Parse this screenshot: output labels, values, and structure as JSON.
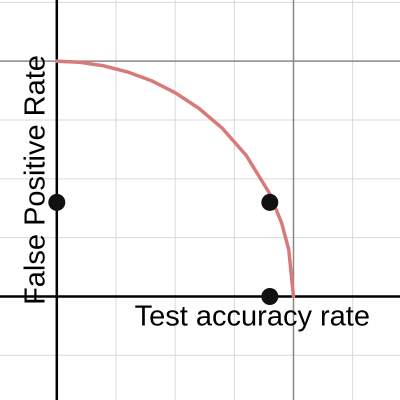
{
  "chart_data": {
    "type": "line",
    "x_label": "Test accuracy rate",
    "y_label": "False Positive Rate",
    "xlim": [
      -0.24,
      1.45
    ],
    "ylim": [
      -0.44,
      1.26
    ],
    "xticks": [
      0,
      0.25,
      0.5,
      0.75,
      1,
      1.25
    ],
    "yticks": [
      -0.25,
      0,
      0.25,
      0.5,
      0.75,
      1,
      1.25
    ],
    "tick_labels": false,
    "grid": true,
    "series": [
      {
        "type": "line",
        "color": "#d87a7a",
        "x": [
          0,
          0.1,
          0.2,
          0.3,
          0.4,
          0.5,
          0.6,
          0.7,
          0.8,
          0.9,
          0.95,
          0.98,
          1
        ],
        "values": [
          1,
          0.995,
          0.98,
          0.954,
          0.917,
          0.866,
          0.8,
          0.714,
          0.6,
          0.436,
          0.312,
          0.199,
          0
        ]
      },
      {
        "type": "scatter",
        "color": "#111111",
        "x": [
          0,
          0.9,
          0.9
        ],
        "values": [
          0.4,
          0.4,
          0
        ]
      }
    ]
  }
}
